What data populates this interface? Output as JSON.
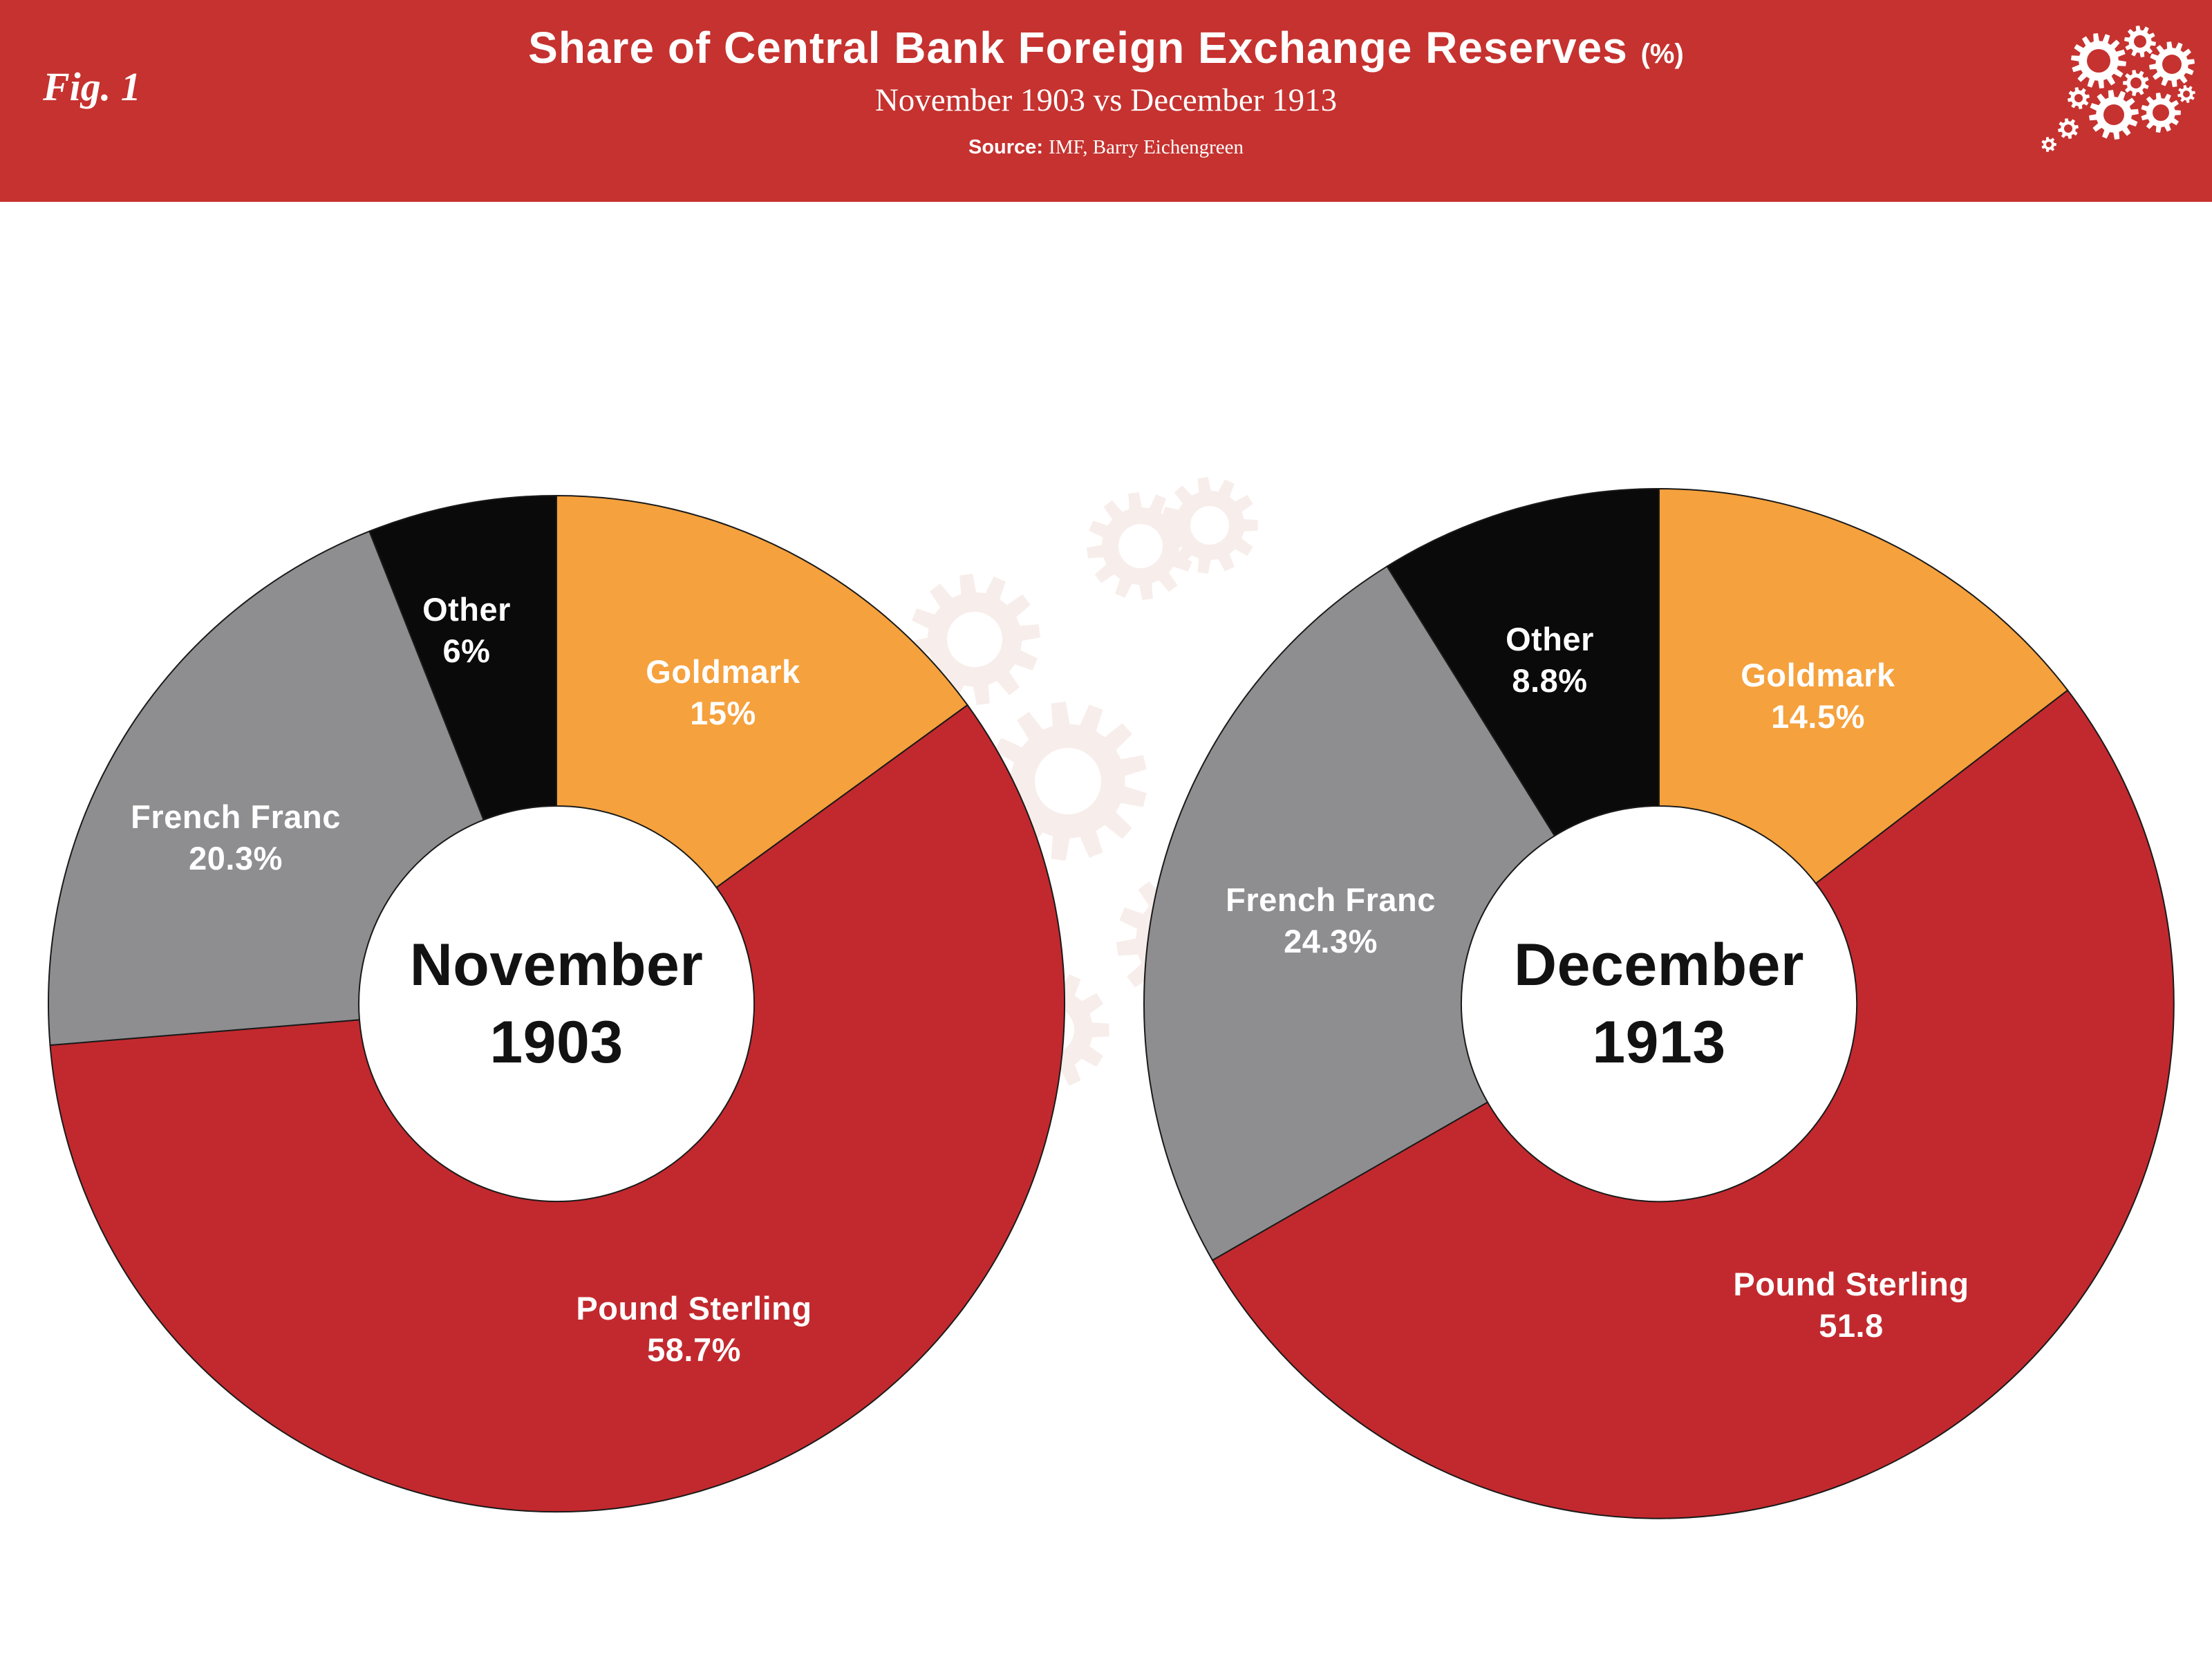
{
  "figure_tag": "Fig. 1",
  "header": {
    "title": "Share of Central Bank Foreign Exchange Reserves",
    "title_suffix": "(%)",
    "subtitle": "November 1903 vs December 1913",
    "source_label": "Source:",
    "source_text": "IMF, Barry Eichengreen",
    "background_color": "#C5322F"
  },
  "chart_data": [
    {
      "type": "pie",
      "style": "donut",
      "start_angle_deg": 0,
      "direction": "clockwise",
      "center_lines": [
        "November",
        "1903"
      ],
      "segments": [
        {
          "label": "Goldmark",
          "value": 15,
          "display": "15%",
          "color": "#F5A13D"
        },
        {
          "label": "Pound Sterling",
          "value": 58.7,
          "display": "58.7%",
          "color": "#C2292E"
        },
        {
          "label": "French Franc",
          "value": 20.3,
          "display": "20.3%",
          "color": "#8E8E90"
        },
        {
          "label": "Other",
          "value": 6,
          "display": "6%",
          "color": "#0A0A0A"
        }
      ]
    },
    {
      "type": "pie",
      "style": "donut",
      "start_angle_deg": 0,
      "direction": "clockwise",
      "center_lines": [
        "December",
        "1913"
      ],
      "segments": [
        {
          "label": "Goldmark",
          "value": 14.5,
          "display": "14.5%",
          "color": "#F5A13D"
        },
        {
          "label": "Pound Sterling",
          "value": 51.8,
          "display": "51.8",
          "color": "#C2292E"
        },
        {
          "label": "French Franc",
          "value": 24.3,
          "display": "24.3%",
          "color": "#8E8E90"
        },
        {
          "label": "Other",
          "value": 8.8,
          "display": "8.8%",
          "color": "#0A0A0A"
        }
      ]
    }
  ]
}
